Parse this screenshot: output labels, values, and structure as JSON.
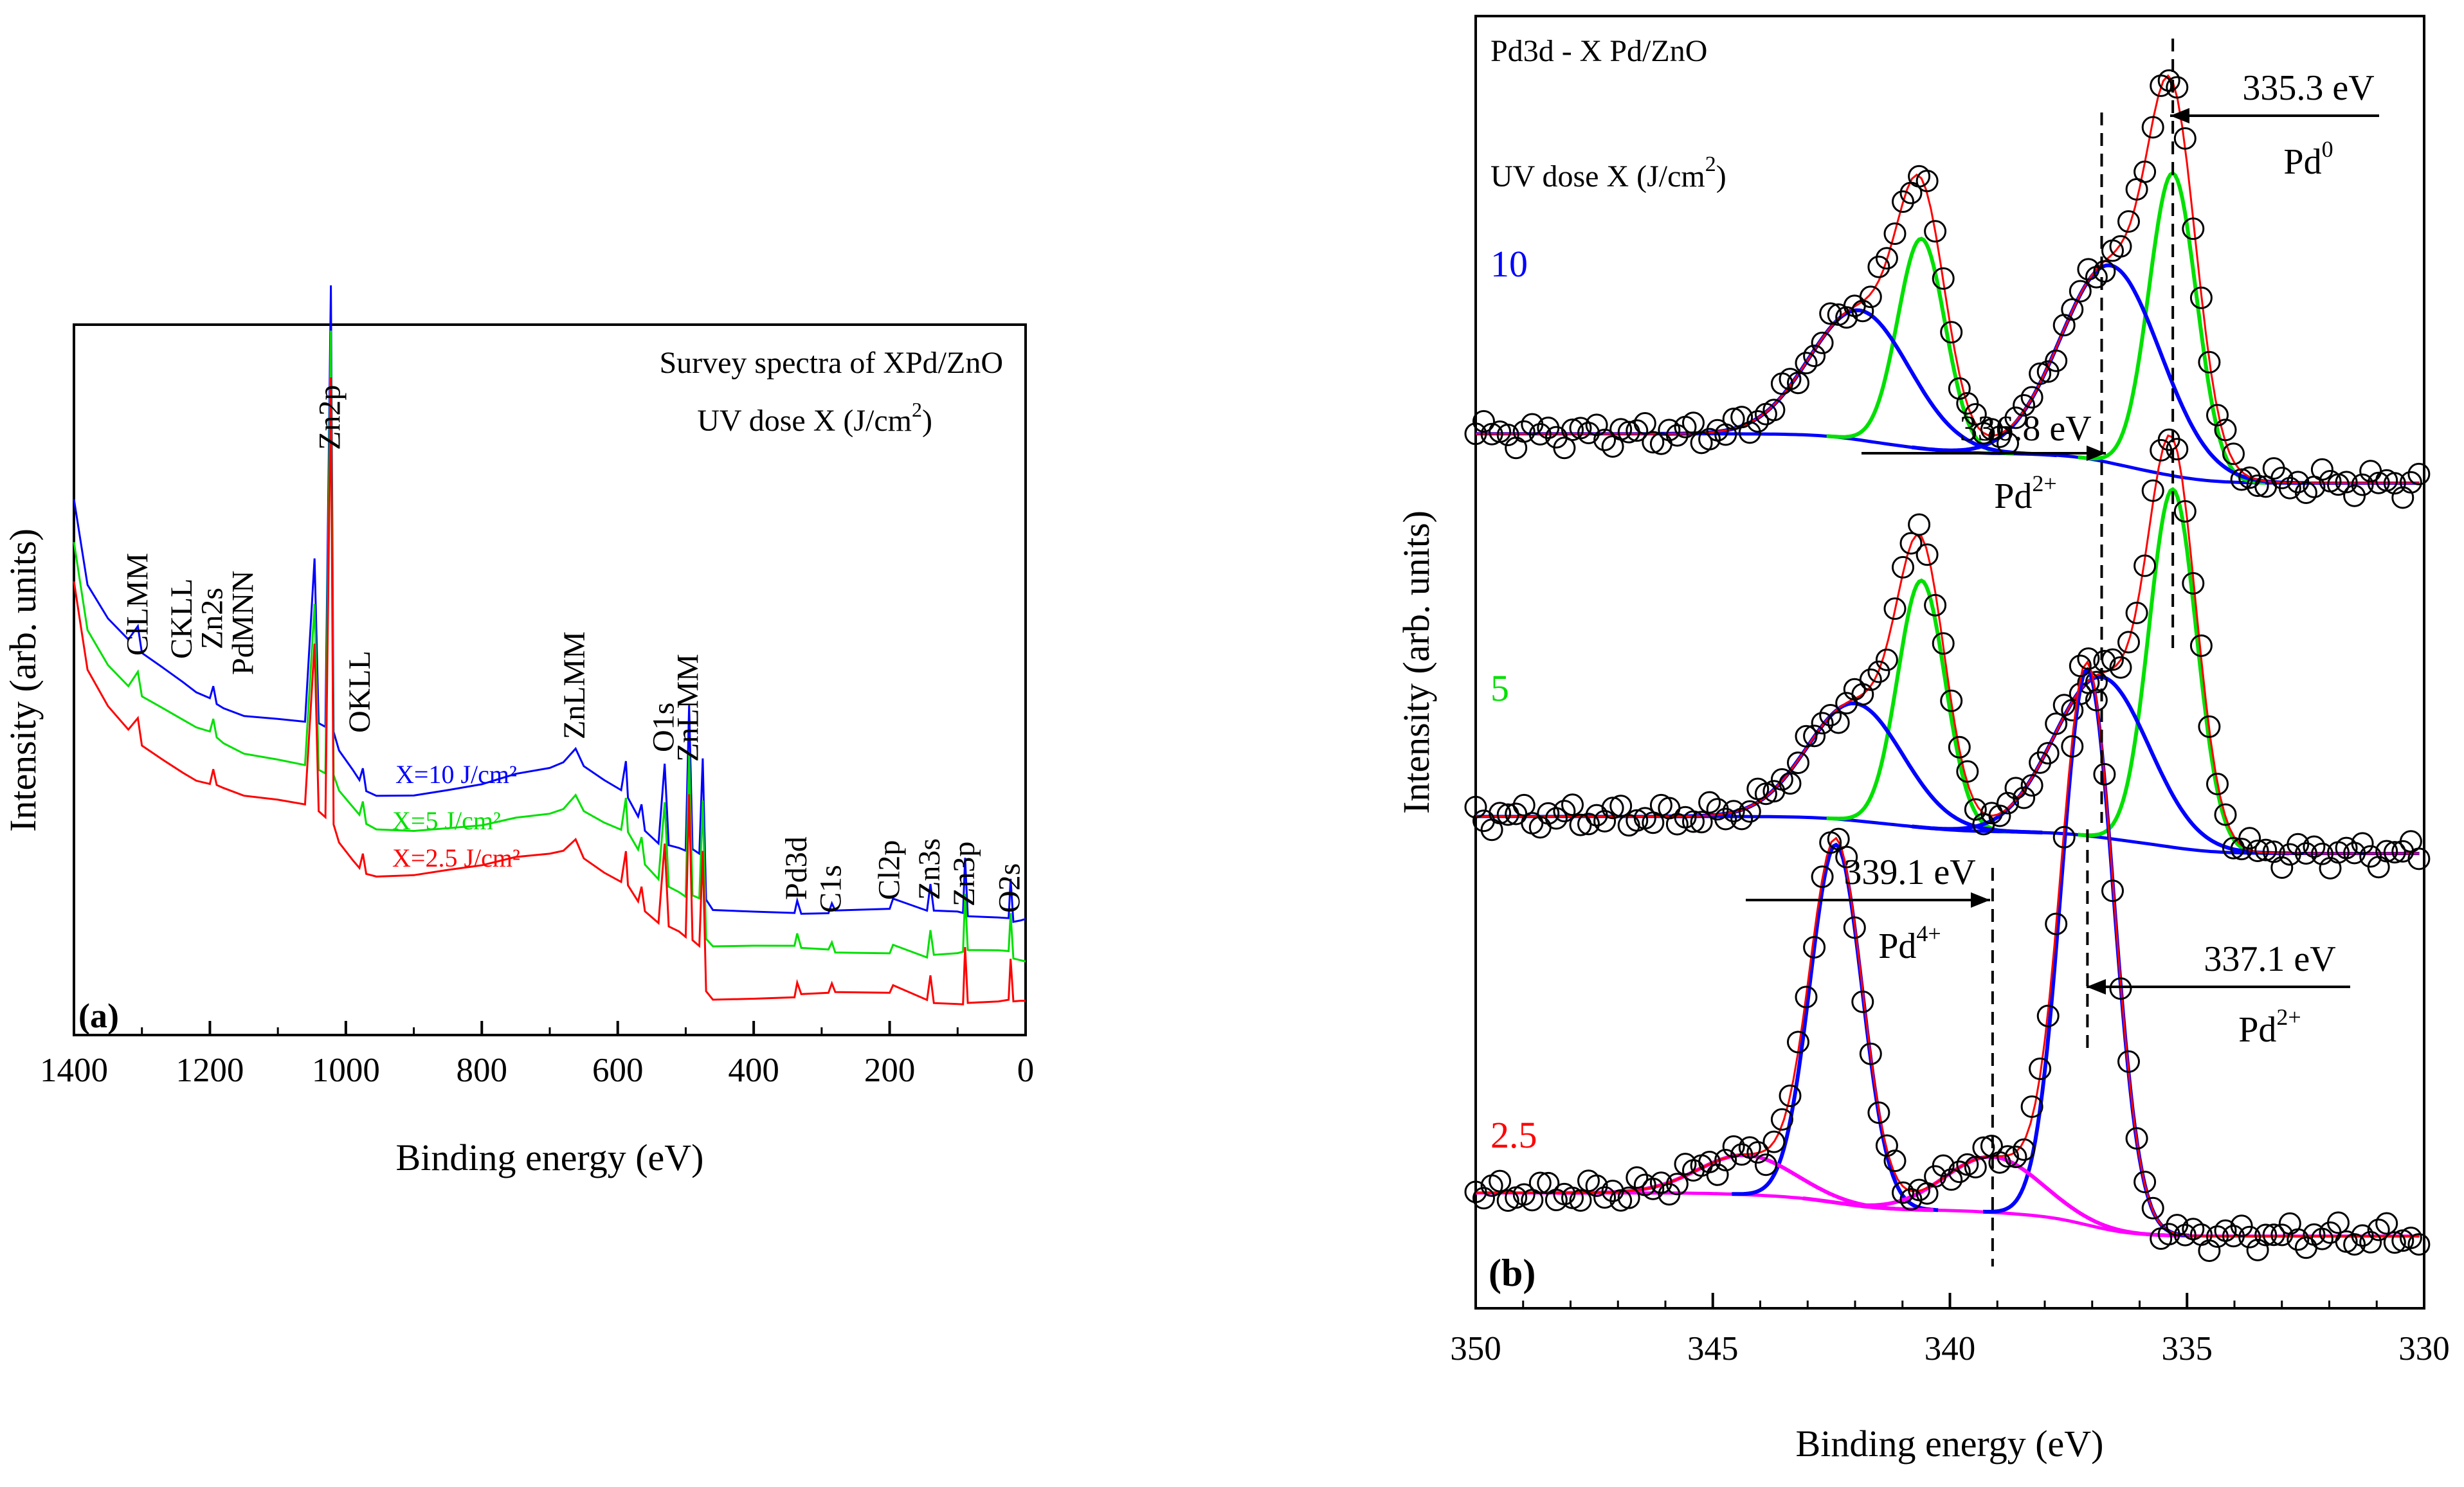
{
  "chart_data": [
    {
      "panel": "(a)",
      "type": "line",
      "title": "Survey spectra of XPd/ZnO",
      "subtitle": "UV dose X (J/cm²)",
      "xlabel": "Binding energy (eV)",
      "ylabel": "Intensity (arb. units)",
      "xlim": [
        1400,
        0
      ],
      "xticks": [
        "1400",
        "1200",
        "1000",
        "800",
        "600",
        "400",
        "200",
        "0"
      ],
      "series": [
        {
          "name": "X=10 J/cm²",
          "color": "#0000ff"
        },
        {
          "name": "X=5 J/cm²",
          "color": "#00e000"
        },
        {
          "name": "X=2.5 J/cm²",
          "color": "#ff0000"
        }
      ],
      "peak_labels": [
        "ClLMM",
        "CKLL",
        "Zn2s",
        "PdMNN",
        "Zn2p",
        "OKLL",
        "ZnLMM",
        "O1s",
        "ZnLMM",
        "Pd3d",
        "C1s",
        "Cl2p",
        "Zn3s",
        "Zn3p",
        "O2s"
      ],
      "peak_positions": [
        1305,
        1240,
        1195,
        1150,
        1022,
        978,
        662,
        531,
        495,
        336,
        285,
        199,
        140,
        89,
        22
      ],
      "curve_points": {
        "x": [
          1400,
          1380,
          1350,
          1320,
          1306,
          1300,
          1270,
          1240,
          1220,
          1200,
          1195,
          1190,
          1180,
          1150,
          1100,
          1060,
          1046,
          1040,
          1030,
          1022,
          1018,
          1010,
          990,
          980,
          975,
          970,
          955,
          900,
          850,
          800,
          750,
          700,
          680,
          662,
          650,
          620,
          595,
          588,
          585,
          570,
          565,
          560,
          540,
          531,
          525,
          510,
          500,
          495,
          490,
          480,
          475,
          470,
          460,
          400,
          340,
          336,
          330,
          290,
          285,
          280,
          200,
          195,
          145,
          140,
          135,
          100,
          92,
          89,
          85,
          40,
          25,
          22,
          18,
          8,
          0
        ],
        "y": [
          1.0,
          0.8,
          0.72,
          0.67,
          0.7,
          0.64,
          0.61,
          0.58,
          0.56,
          0.55,
          0.58,
          0.54,
          0.53,
          0.51,
          0.5,
          0.49,
          0.86,
          0.48,
          0.47,
          1.48,
          0.46,
          0.42,
          0.38,
          0.36,
          0.39,
          0.34,
          0.33,
          0.33,
          0.34,
          0.35,
          0.37,
          0.38,
          0.39,
          0.42,
          0.38,
          0.35,
          0.33,
          0.4,
          0.32,
          0.28,
          0.31,
          0.25,
          0.22,
          0.4,
          0.21,
          0.2,
          0.19,
          0.52,
          0.19,
          0.18,
          0.4,
          0.08,
          0.06,
          0.06,
          0.06,
          0.09,
          0.06,
          0.06,
          0.08,
          0.06,
          0.06,
          0.08,
          0.05,
          0.11,
          0.05,
          0.05,
          0.05,
          0.18,
          0.05,
          0.05,
          0.05,
          0.14,
          0.04,
          0.04,
          0.04
        ]
      },
      "series_offsets": {
        "X=10 J/cm²": 0.13,
        "X=5 J/cm²": 0.07,
        "X=2.5 J/cm²": 0.0
      }
    },
    {
      "panel": "(b)",
      "type": "line",
      "title": "Pd3d - X Pd/ZnO",
      "subtitle": "UV dose X (J/cm²)",
      "xlabel": "Binding energy (eV)",
      "ylabel": "Intensity (arb. units)",
      "xlim": [
        350,
        330
      ],
      "xticks": [
        "350",
        "345",
        "340",
        "335",
        "330"
      ],
      "spectra": [
        {
          "label": "10",
          "color": "#0000ff",
          "baseline": 0.64,
          "bg_high": 0.045,
          "bg_low": 0.005,
          "components": [
            {
              "center": 335.3,
              "height": 0.245,
              "width": 0.5,
              "color": "#00e000"
            },
            {
              "center": 340.6,
              "height": 0.17,
              "width": 0.5,
              "color": "#00e000"
            },
            {
              "center": 336.6,
              "height": 0.16,
              "width": 1.05,
              "color": "#0000ff"
            },
            {
              "center": 341.9,
              "height": 0.105,
              "width": 1.05,
              "color": "#0000ff"
            }
          ]
        },
        {
          "label": "5",
          "color": "#00e000",
          "baseline": 0.34,
          "bg_high": 0.035,
          "bg_low": 0.005,
          "components": [
            {
              "center": 335.3,
              "height": 0.29,
              "width": 0.5,
              "color": "#00e000"
            },
            {
              "center": 340.6,
              "height": 0.2,
              "width": 0.5,
              "color": "#00e000"
            },
            {
              "center": 336.8,
              "height": 0.13,
              "width": 1.0,
              "color": "#0000ff"
            },
            {
              "center": 342.0,
              "height": 0.095,
              "width": 1.0,
              "color": "#0000ff"
            }
          ]
        },
        {
          "label": "2.5",
          "color": "#ff0000",
          "baseline": 0.035,
          "bg_high": 0.035,
          "bg_low": 0.0,
          "components": [
            {
              "center": 337.1,
              "height": 0.45,
              "width": 0.55,
              "color": "#0000ff"
            },
            {
              "center": 342.4,
              "height": 0.29,
              "width": 0.55,
              "color": "#0000ff"
            },
            {
              "center": 339.1,
              "height": 0.045,
              "width": 1.0,
              "color": "#ff00ff"
            },
            {
              "center": 344.3,
              "height": 0.032,
              "width": 1.0,
              "color": "#ff00ff"
            }
          ]
        }
      ],
      "annotations": [
        {
          "energy": "335.3 eV",
          "state": "Pd",
          "sup": "0",
          "x": 335.3
        },
        {
          "energy": "336.8 eV",
          "state": "Pd",
          "sup": "2+",
          "x": 336.8
        },
        {
          "energy": "339.1 eV",
          "state": "Pd",
          "sup": "4+",
          "x": 339.1
        },
        {
          "energy": "337.1 eV",
          "state": "Pd",
          "sup": "2+",
          "x": 337.1
        }
      ]
    }
  ]
}
